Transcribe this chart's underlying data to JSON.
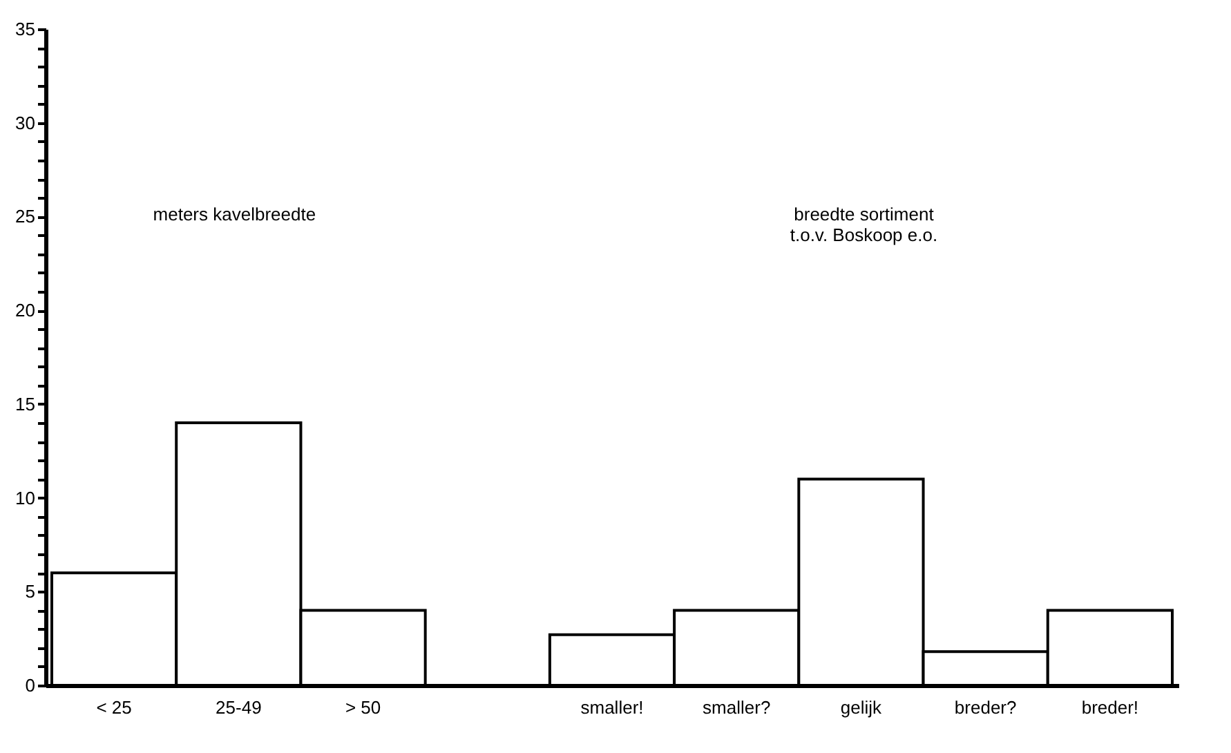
{
  "chart_data": {
    "type": "bar",
    "categories": [
      "< 25",
      "25-49",
      "> 50",
      null,
      "smaller!",
      "smaller?",
      "gelijk",
      "breder?",
      "breder!"
    ],
    "values": [
      6,
      14,
      4,
      null,
      2.7,
      4,
      11,
      1.8,
      4
    ],
    "color": "#ffffff",
    "ylim": [
      0,
      35
    ],
    "yticks": [
      0,
      {
        "value": 1,
        "label": null
      },
      {
        "value": 2,
        "label": null
      },
      {
        "value": 3,
        "label": null
      },
      {
        "value": 4,
        "label": null
      },
      5,
      {
        "value": 6,
        "label": null
      },
      {
        "value": 7,
        "label": null
      },
      {
        "value": 8,
        "label": null
      },
      {
        "value": 9,
        "label": null
      },
      10,
      {
        "value": 11,
        "label": null
      },
      {
        "value": 12,
        "label": null
      },
      {
        "value": 13,
        "label": null
      },
      {
        "value": 14,
        "label": null
      },
      15,
      {
        "value": 16,
        "label": null
      },
      {
        "value": 17,
        "label": null
      },
      {
        "value": 18,
        "label": null
      },
      {
        "value": 19,
        "label": null
      },
      20,
      {
        "value": 21,
        "label": null
      },
      {
        "value": 22,
        "label": null
      },
      {
        "value": 23,
        "label": null
      },
      {
        "value": 24,
        "label": null
      },
      25,
      {
        "value": 26,
        "label": null
      },
      {
        "value": 27,
        "label": null
      },
      {
        "value": 28,
        "label": null
      },
      {
        "value": 29,
        "label": null
      },
      30,
      {
        "value": 31,
        "label": null
      },
      {
        "value": 32,
        "label": null
      },
      {
        "value": 33,
        "label": null
      },
      {
        "value": 34,
        "label": null
      },
      35
    ],
    "annotations": [
      "meters kavelbreedte",
      "breedte sortiment\nt.o.v. Boskoop e.o."
    ],
    "grid": false
  }
}
